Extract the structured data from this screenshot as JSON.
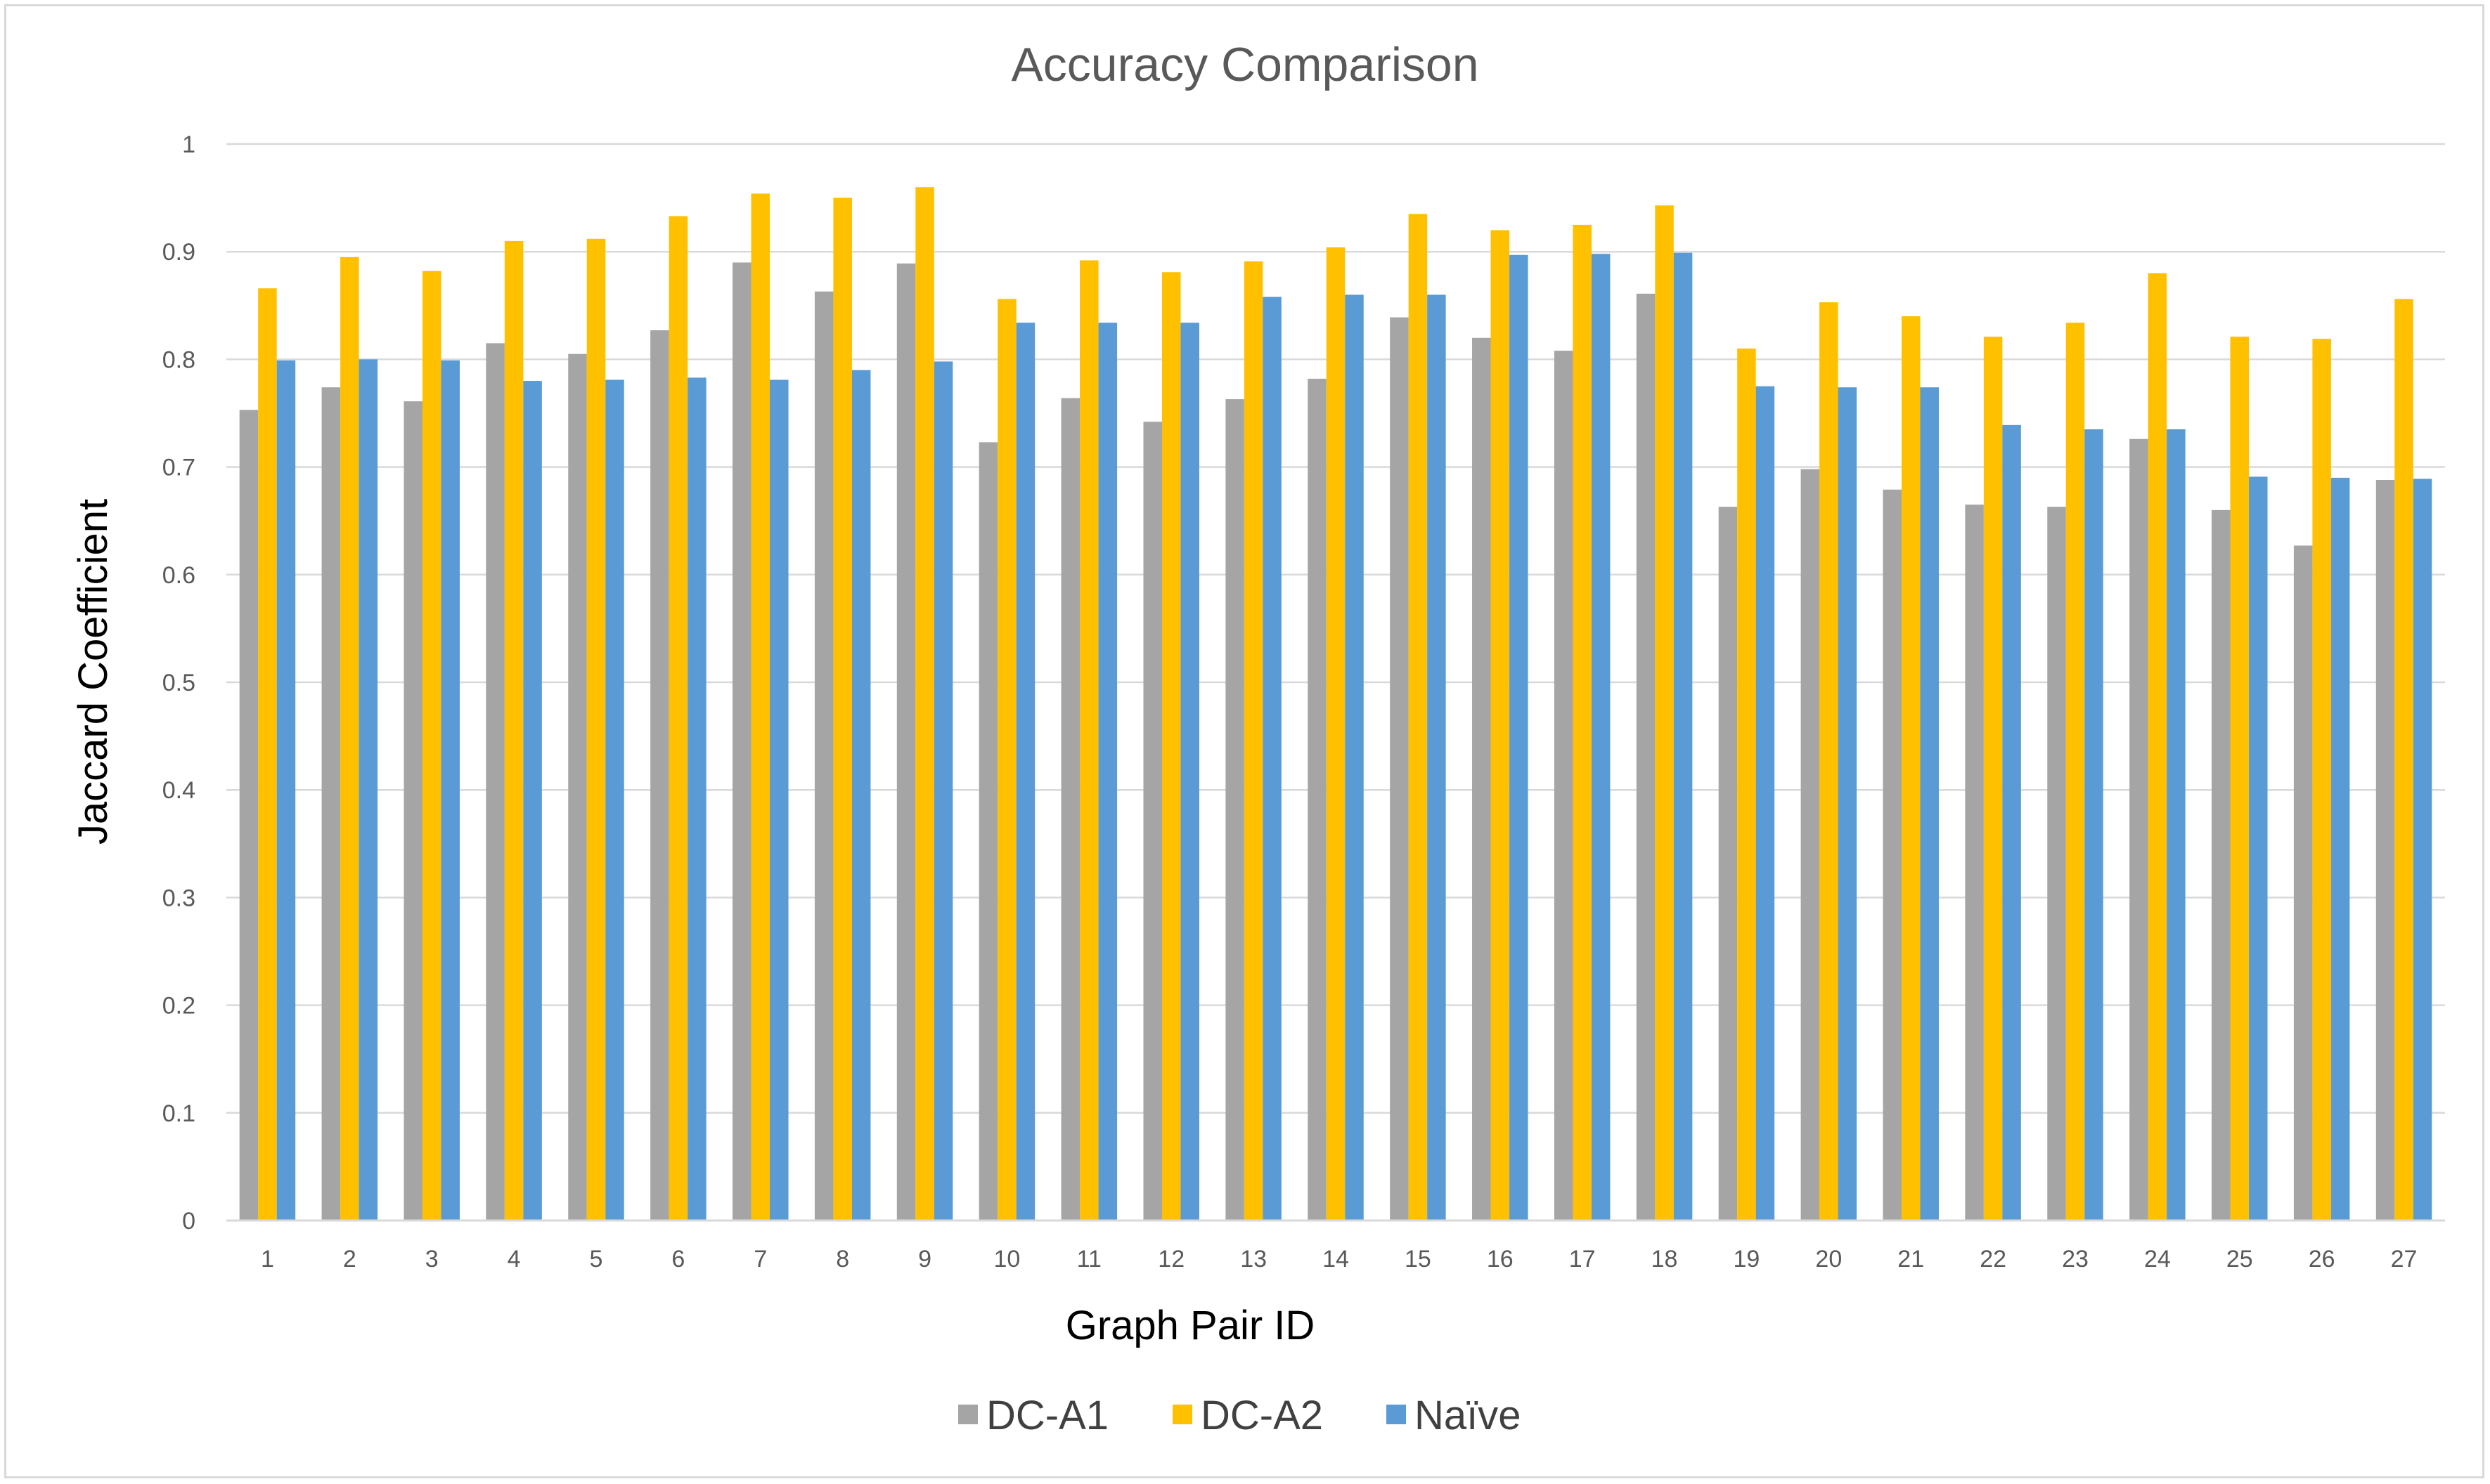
{
  "chart_data": {
    "type": "bar",
    "title": "Accuracy Comparison",
    "xlabel": "Graph Pair ID",
    "ylabel": "Jaccard Coefficient",
    "ylim": [
      0,
      1
    ],
    "yticks": [
      "0",
      "0.1",
      "0.2",
      "0.3",
      "0.4",
      "0.5",
      "0.6",
      "0.7",
      "0.8",
      "0.9",
      "1"
    ],
    "grid": true,
    "legend_position": "bottom",
    "categories": [
      "1",
      "2",
      "3",
      "4",
      "5",
      "6",
      "7",
      "8",
      "9",
      "10",
      "11",
      "12",
      "13",
      "14",
      "15",
      "16",
      "17",
      "18",
      "19",
      "20",
      "21",
      "22",
      "23",
      "24",
      "25",
      "26",
      "27"
    ],
    "series": [
      {
        "name": "DC-A1",
        "color": "#a5a5a5",
        "values": [
          0.753,
          0.774,
          0.761,
          0.815,
          0.805,
          0.827,
          0.89,
          0.863,
          0.889,
          0.723,
          0.764,
          0.742,
          0.763,
          0.782,
          0.839,
          0.82,
          0.808,
          0.861,
          0.663,
          0.698,
          0.679,
          0.665,
          0.663,
          0.726,
          0.66,
          0.627,
          0.688
        ]
      },
      {
        "name": "DC-A2",
        "color": "#ffc000",
        "values": [
          0.866,
          0.895,
          0.882,
          0.91,
          0.912,
          0.933,
          0.954,
          0.95,
          0.96,
          0.856,
          0.892,
          0.881,
          0.891,
          0.904,
          0.935,
          0.92,
          0.925,
          0.943,
          0.81,
          0.853,
          0.84,
          0.821,
          0.834,
          0.88,
          0.821,
          0.819,
          0.856
        ]
      },
      {
        "name": "Naïve",
        "color": "#5b9bd5",
        "values": [
          0.799,
          0.8,
          0.799,
          0.78,
          0.781,
          0.783,
          0.781,
          0.79,
          0.798,
          0.834,
          0.834,
          0.834,
          0.858,
          0.86,
          0.86,
          0.897,
          0.898,
          0.899,
          0.775,
          0.774,
          0.774,
          0.739,
          0.735,
          0.735,
          0.691,
          0.69,
          0.689
        ]
      }
    ]
  }
}
